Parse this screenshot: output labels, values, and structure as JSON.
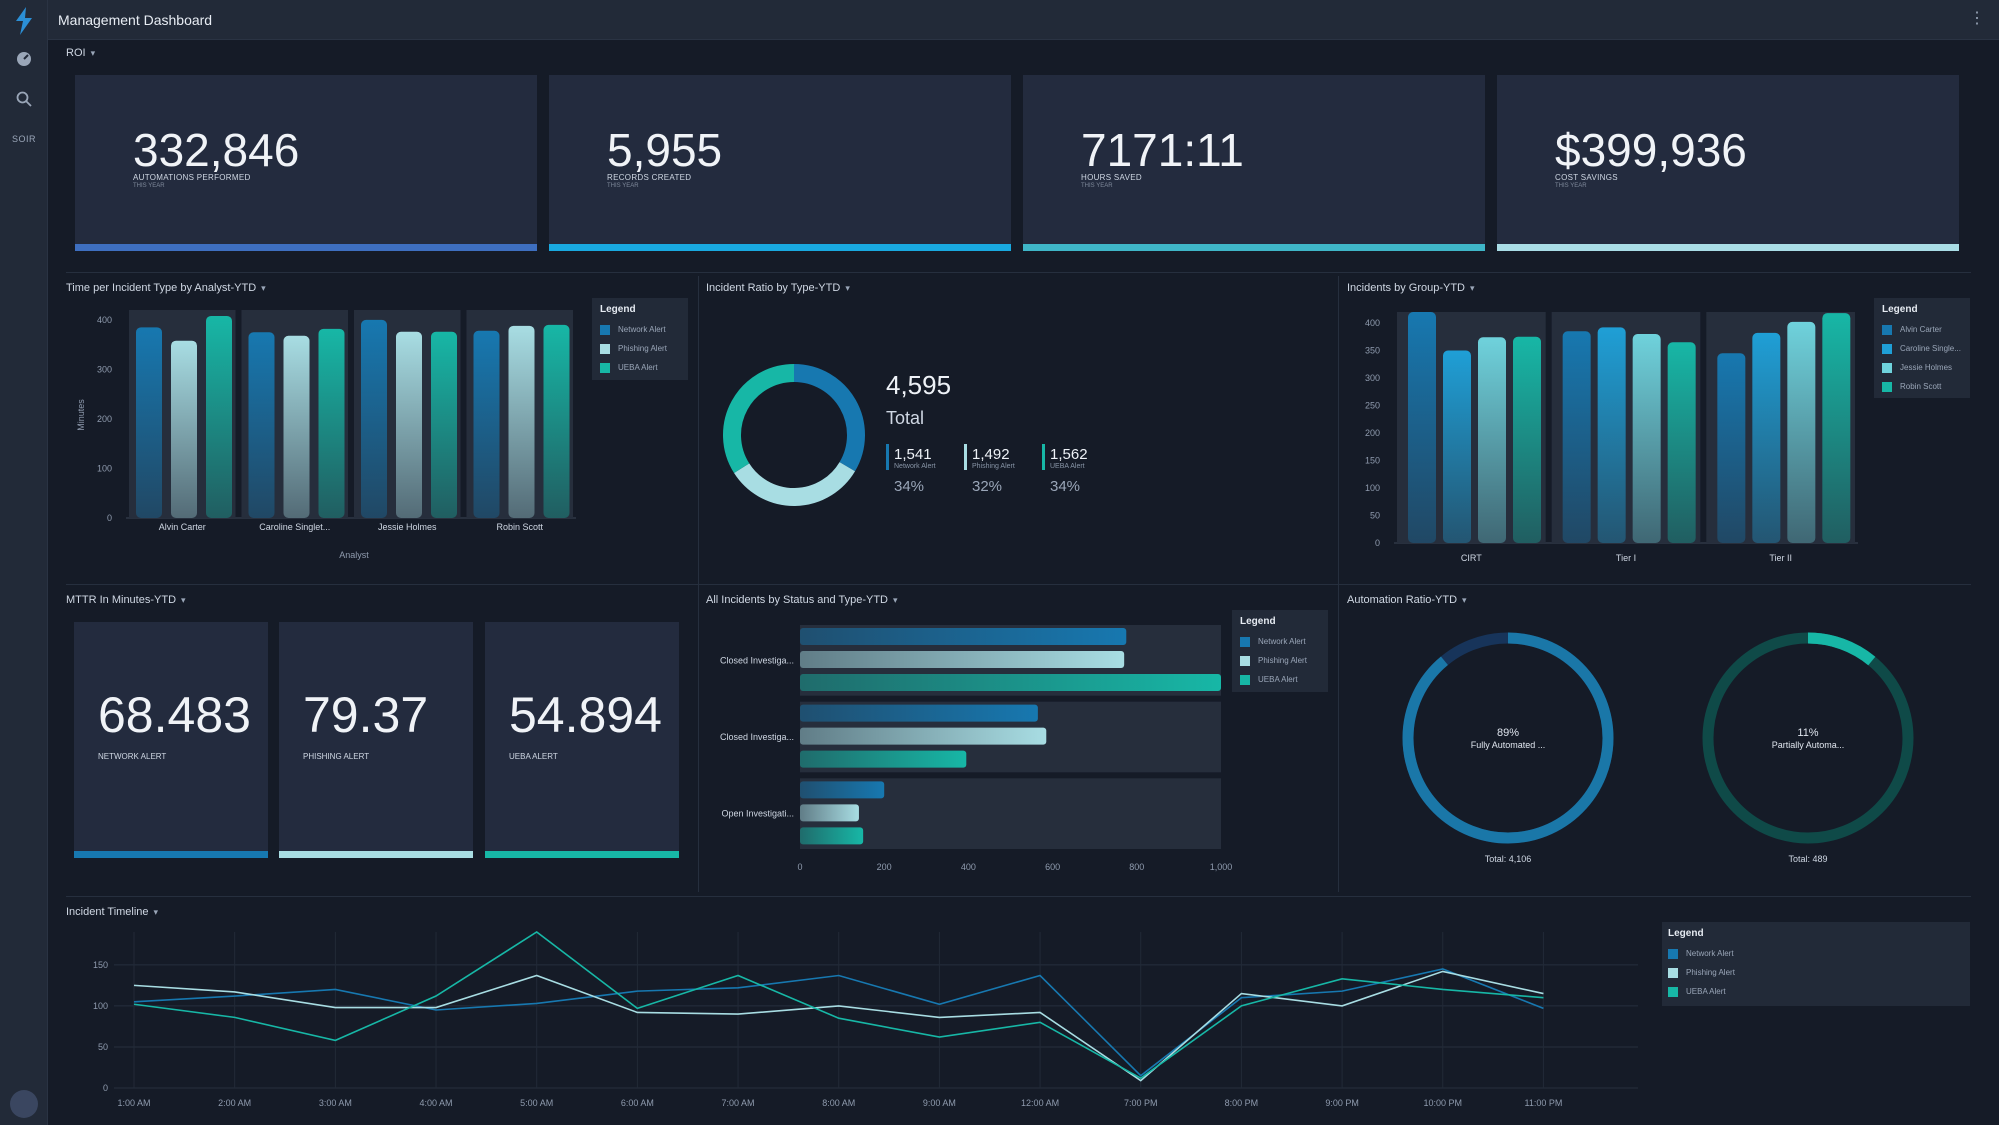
{
  "app": {
    "title": "Management Dashboard",
    "sidebar_text": "SOIR"
  },
  "roi": {
    "dropdown": "ROI"
  },
  "kpis": [
    {
      "value": "332,846",
      "label": "AUTOMATIONS PERFORMED",
      "sub": "THIS YEAR",
      "color": "#3e6fc0"
    },
    {
      "value": "5,955",
      "label": "RECORDS CREATED",
      "sub": "THIS YEAR",
      "color": "#19a9e0"
    },
    {
      "value": "7171:11",
      "label": "HOURS SAVED",
      "sub": "THIS YEAR",
      "color": "#3fb6c8"
    },
    {
      "value": "$399,936",
      "label": "COST SAVINGS",
      "sub": "THIS YEAR",
      "color": "#a9dde6"
    }
  ],
  "widgets": {
    "time_per_incident": "Time per Incident Type by Analyst-YTD",
    "incident_ratio": "Incident Ratio by Type-YTD",
    "incidents_by_group": "Incidents by Group-YTD",
    "mttr": "MTTR In Minutes-YTD",
    "all_incidents": "All Incidents by Status and Type-YTD",
    "automation_ratio": "Automation Ratio-YTD",
    "timeline": "Incident Timeline"
  },
  "colors": {
    "network": "#1778b0",
    "phishing": "#a8dde3",
    "ueba": "#17b7a6"
  },
  "legend_title": "Legend",
  "legend_types": [
    "Network Alert",
    "Phishing Alert",
    "UEBA Alert"
  ],
  "legend_analysts": [
    "Alvin Carter",
    "Caroline Single...",
    "Jessie Holmes",
    "Robin Scott"
  ],
  "donut": {
    "total": "4,595",
    "total_label": "Total",
    "items": [
      {
        "value": "1,541",
        "label": "Network Alert",
        "pct": "34%"
      },
      {
        "value": "1,492",
        "label": "Phishing Alert",
        "pct": "32%"
      },
      {
        "value": "1,562",
        "label": "UEBA Alert",
        "pct": "34%"
      }
    ]
  },
  "mttr": [
    {
      "value": "68.483",
      "label": "NETWORK ALERT",
      "color": "#1778b0"
    },
    {
      "value": "79.37",
      "label": "PHISHING ALERT",
      "color": "#a8dde3"
    },
    {
      "value": "54.894",
      "label": "UEBA ALERT",
      "color": "#17b7a6"
    }
  ],
  "automation": [
    {
      "pct": "89%",
      "label": "Fully Automated ...",
      "total": "Total: 4,106",
      "fraction": 0.89,
      "color": "#1a77a8"
    },
    {
      "pct": "11%",
      "label": "Partially Automa...",
      "total": "Total: 489",
      "fraction": 0.11,
      "color": "#127a72"
    }
  ],
  "chart_data": [
    {
      "type": "bar",
      "title": "Time per Incident Type by Analyst-YTD",
      "xlabel": "Analyst",
      "ylabel": "Minutes",
      "ylim": [
        0,
        420
      ],
      "yticks": [
        0,
        100,
        200,
        300,
        400
      ],
      "categories": [
        "Alvin Carter",
        "Caroline Singlet...",
        "Jessie Holmes",
        "Robin Scott"
      ],
      "series": [
        {
          "name": "Network Alert",
          "values": [
            385,
            375,
            400,
            378
          ]
        },
        {
          "name": "Phishing Alert",
          "values": [
            358,
            368,
            376,
            388
          ]
        },
        {
          "name": "UEBA Alert",
          "values": [
            408,
            382,
            376,
            390
          ]
        }
      ]
    },
    {
      "type": "bar",
      "title": "Incidents by Group-YTD",
      "ylim": [
        0,
        420
      ],
      "yticks": [
        0,
        50,
        100,
        150,
        200,
        250,
        300,
        350,
        400
      ],
      "categories": [
        "CIRT",
        "Tier I",
        "Tier II"
      ],
      "series": [
        {
          "name": "Alvin Carter",
          "values": [
            420,
            385,
            345
          ]
        },
        {
          "name": "Caroline Single...",
          "values": [
            350,
            392,
            382
          ]
        },
        {
          "name": "Jessie Holmes",
          "values": [
            374,
            380,
            402
          ]
        },
        {
          "name": "Robin Scott",
          "values": [
            375,
            365,
            418
          ]
        }
      ]
    },
    {
      "type": "bar",
      "orientation": "horizontal",
      "title": "All Incidents by Status and Type-YTD",
      "xlim": [
        0,
        1000
      ],
      "xticks": [
        0,
        200,
        400,
        600,
        800,
        "1,000"
      ],
      "categories": [
        "Closed Investiga...",
        "Closed Investiga...",
        "Open Investigati..."
      ],
      "series": [
        {
          "name": "Network Alert",
          "values": [
            775,
            565,
            200
          ]
        },
        {
          "name": "Phishing Alert",
          "values": [
            770,
            585,
            140
          ]
        },
        {
          "name": "UEBA Alert",
          "values": [
            1020,
            395,
            150
          ]
        }
      ]
    },
    {
      "type": "line",
      "title": "Incident Timeline",
      "ylim": [
        0,
        190
      ],
      "yticks": [
        0,
        50,
        100,
        150
      ],
      "x": [
        "1:00 AM",
        "2:00 AM",
        "3:00 AM",
        "4:00 AM",
        "5:00 AM",
        "6:00 AM",
        "7:00 AM",
        "8:00 AM",
        "9:00 AM",
        "12:00 AM",
        "7:00 PM",
        "8:00 PM",
        "9:00 PM",
        "10:00 PM",
        "11:00 PM"
      ],
      "series": [
        {
          "name": "Network Alert",
          "values": [
            105,
            112,
            120,
            95,
            103,
            118,
            122,
            137,
            102,
            137,
            15,
            110,
            118,
            145,
            97
          ]
        },
        {
          "name": "Phishing Alert",
          "values": [
            125,
            117,
            98,
            98,
            137,
            92,
            90,
            100,
            86,
            92,
            9,
            115,
            100,
            142,
            115
          ]
        },
        {
          "name": "UEBA Alert",
          "values": [
            102,
            86,
            58,
            112,
            190,
            97,
            137,
            85,
            62,
            80,
            12,
            100,
            133,
            120,
            110
          ]
        }
      ]
    },
    {
      "type": "pie",
      "title": "Incident Ratio by Type-YTD",
      "categories": [
        "Network Alert",
        "Phishing Alert",
        "UEBA Alert"
      ],
      "values": [
        1541,
        1492,
        1562
      ]
    }
  ]
}
